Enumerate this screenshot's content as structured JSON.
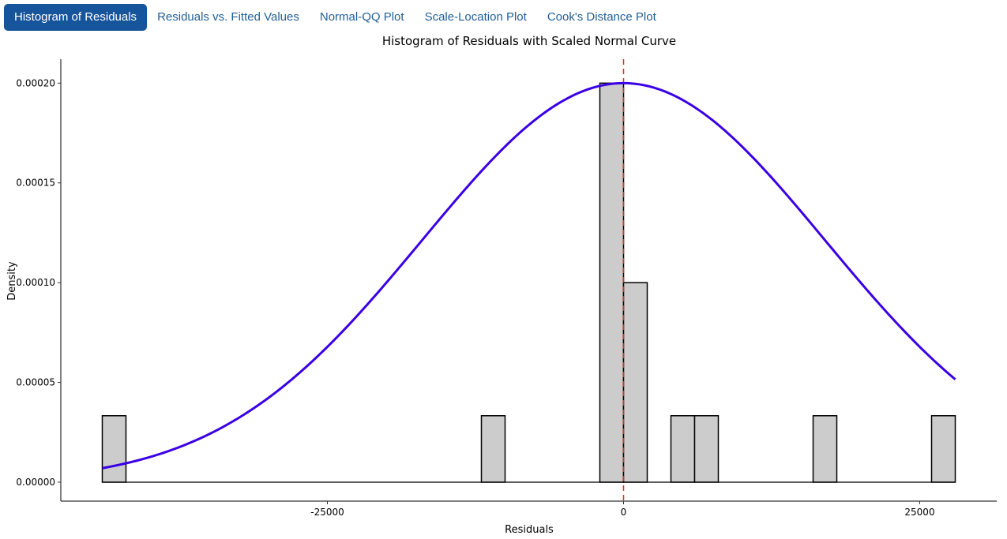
{
  "tabs": [
    {
      "label": "Histogram of Residuals",
      "active": true
    },
    {
      "label": "Residuals vs. Fitted Values",
      "active": false
    },
    {
      "label": "Normal-QQ Plot",
      "active": false
    },
    {
      "label": "Scale-Location Plot",
      "active": false
    },
    {
      "label": "Cook's Distance Plot",
      "active": false
    }
  ],
  "chart_data": {
    "type": "bar",
    "title": "Histogram of Residuals with Scaled Normal Curve",
    "xlabel": "Residuals",
    "ylabel": "Density",
    "xlim": [
      -47500,
      31500
    ],
    "ylim": [
      -9.5e-06,
      0.000212
    ],
    "xticks": [
      -25000,
      0,
      25000
    ],
    "xtick_labels": [
      "-25000",
      "0",
      "25000"
    ],
    "yticks": [
      0,
      5e-05,
      0.0001,
      0.00015,
      0.0002
    ],
    "ytick_labels": [
      "0.00000",
      "0.00005",
      "0.00010",
      "0.00015",
      "0.00020"
    ],
    "bin_width": 2000,
    "bins": [
      {
        "start": -44000,
        "end": -42000,
        "density": 3.33e-05
      },
      {
        "start": -12000,
        "end": -10000,
        "density": 3.33e-05
      },
      {
        "start": -2000,
        "end": 0,
        "density": 0.0002
      },
      {
        "start": 0,
        "end": 2000,
        "density": 0.0001
      },
      {
        "start": 4000,
        "end": 6000,
        "density": 3.33e-05
      },
      {
        "start": 6000,
        "end": 8000,
        "density": 3.33e-05
      },
      {
        "start": 16000,
        "end": 18000,
        "density": 3.33e-05
      },
      {
        "start": 26000,
        "end": 28000,
        "density": 3.33e-05
      }
    ],
    "empty_bin_range": [
      -44000,
      28000
    ],
    "normal_curve": {
      "mean": 0,
      "sd": 17000,
      "peak_density": 0.0002,
      "x_range": [
        -44000,
        28000
      ]
    },
    "reference_line": {
      "x": 0,
      "style": "dashed"
    },
    "colors": {
      "bar_fill": "#cccccc",
      "bar_stroke": "#000000",
      "curve": "#3a00e6",
      "reference_line": "#ee2222"
    }
  }
}
